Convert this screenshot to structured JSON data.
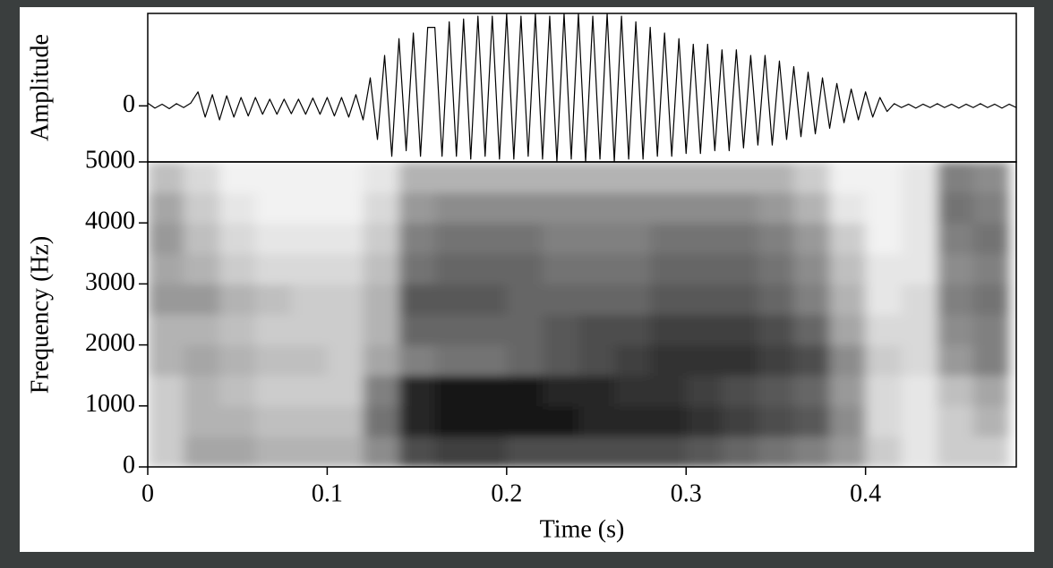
{
  "chart_data": [
    {
      "type": "line",
      "ylabel": "Amplitude",
      "color": "#000000",
      "xlim": [
        0,
        0.484
      ],
      "ylim": [
        -1,
        1.65
      ],
      "yticks": [
        0
      ],
      "x": [
        0,
        0.004,
        0.008,
        0.012,
        0.016,
        0.02,
        0.024,
        0.028,
        0.032,
        0.036,
        0.04,
        0.044,
        0.048,
        0.052,
        0.056,
        0.06,
        0.064,
        0.068,
        0.072,
        0.076,
        0.08,
        0.084,
        0.088,
        0.092,
        0.096,
        0.1,
        0.104,
        0.108,
        0.112,
        0.116,
        0.12,
        0.124,
        0.128,
        0.132,
        0.136,
        0.14,
        0.144,
        0.148,
        0.152,
        0.156,
        0.16,
        0.164,
        0.168,
        0.172,
        0.176,
        0.18,
        0.184,
        0.188,
        0.192,
        0.196,
        0.2,
        0.204,
        0.208,
        0.212,
        0.216,
        0.22,
        0.224,
        0.228,
        0.232,
        0.236,
        0.24,
        0.244,
        0.248,
        0.252,
        0.256,
        0.26,
        0.264,
        0.268,
        0.272,
        0.276,
        0.28,
        0.284,
        0.288,
        0.292,
        0.296,
        0.3,
        0.304,
        0.308,
        0.312,
        0.316,
        0.32,
        0.324,
        0.328,
        0.332,
        0.336,
        0.34,
        0.344,
        0.348,
        0.352,
        0.356,
        0.36,
        0.364,
        0.368,
        0.372,
        0.376,
        0.38,
        0.384,
        0.388,
        0.392,
        0.396,
        0.4,
        0.404,
        0.408,
        0.412,
        0.416,
        0.42,
        0.424,
        0.428,
        0.432,
        0.436,
        0.44,
        0.444,
        0.448,
        0.452,
        0.456,
        0.46,
        0.464,
        0.468,
        0.472,
        0.476,
        0.48,
        0.484
      ],
      "values": [
        0.05,
        -0.04,
        0.03,
        -0.05,
        0.04,
        -0.03,
        0.05,
        0.25,
        -0.2,
        0.2,
        -0.25,
        0.18,
        -0.2,
        0.15,
        -0.18,
        0.15,
        -0.15,
        0.12,
        -0.15,
        0.12,
        -0.14,
        0.12,
        -0.15,
        0.14,
        -0.15,
        0.15,
        -0.18,
        0.15,
        -0.2,
        0.2,
        -0.25,
        0.5,
        -0.6,
        0.9,
        -0.9,
        1.2,
        -0.8,
        1.3,
        -0.9,
        1.4,
        1.4,
        -0.9,
        1.5,
        -0.9,
        1.55,
        -0.95,
        1.6,
        -0.9,
        1.6,
        -0.95,
        1.65,
        -0.95,
        1.6,
        -0.9,
        1.65,
        -0.95,
        1.6,
        -1,
        1.65,
        -0.95,
        1.65,
        -1,
        1.6,
        -0.95,
        1.65,
        -1,
        1.6,
        -0.95,
        1.5,
        -0.95,
        1.4,
        -0.9,
        1.3,
        -0.9,
        1.2,
        -0.85,
        1.1,
        -0.85,
        1.1,
        -0.8,
        1.0,
        -0.8,
        1.0,
        -0.75,
        0.9,
        -0.7,
        0.9,
        -0.7,
        0.8,
        -0.6,
        0.7,
        -0.55,
        0.6,
        -0.5,
        0.5,
        -0.4,
        0.4,
        -0.3,
        0.3,
        -0.25,
        0.25,
        -0.2,
        0.15,
        -0.1,
        0.04,
        -0.03,
        0.03,
        -0.04,
        0.03,
        -0.03,
        0.04,
        -0.03,
        0.03,
        -0.04,
        0.03,
        -0.03,
        0.04,
        -0.03,
        0.03,
        -0.04,
        0.03,
        -0.03
      ]
    },
    {
      "type": "heatmap",
      "ylabel": "Frequency (Hz)",
      "xlabel": "Time (s)",
      "xlim": [
        0,
        0.484
      ],
      "ylim": [
        0,
        5000
      ],
      "xticks": [
        0,
        0.1,
        0.2,
        0.3,
        0.4
      ],
      "yticks": [
        0,
        1000,
        2000,
        3000,
        4000,
        5000
      ],
      "x": [
        0,
        0.02,
        0.04,
        0.06,
        0.08,
        0.1,
        0.12,
        0.14,
        0.16,
        0.18,
        0.2,
        0.22,
        0.24,
        0.26,
        0.28,
        0.3,
        0.32,
        0.34,
        0.36,
        0.38,
        0.4,
        0.42,
        0.44,
        0.46,
        0.48
      ],
      "y": [
        0,
        500,
        1000,
        1500,
        2000,
        2500,
        3000,
        3500,
        4000,
        4500,
        5000
      ],
      "z": [
        [
          0.2,
          0.35,
          0.35,
          0.3,
          0.3,
          0.3,
          0.45,
          0.7,
          0.75,
          0.75,
          0.7,
          0.7,
          0.7,
          0.7,
          0.7,
          0.65,
          0.6,
          0.55,
          0.5,
          0.4,
          0.2,
          0.1,
          0.2,
          0.2
        ],
        [
          0.2,
          0.3,
          0.3,
          0.25,
          0.25,
          0.25,
          0.55,
          0.85,
          0.9,
          0.9,
          0.9,
          0.9,
          0.85,
          0.85,
          0.85,
          0.8,
          0.75,
          0.7,
          0.65,
          0.45,
          0.15,
          0.1,
          0.2,
          0.3
        ],
        [
          0.2,
          0.3,
          0.25,
          0.2,
          0.2,
          0.2,
          0.5,
          0.85,
          0.9,
          0.9,
          0.9,
          0.85,
          0.85,
          0.8,
          0.8,
          0.75,
          0.7,
          0.65,
          0.6,
          0.4,
          0.15,
          0.1,
          0.25,
          0.35
        ],
        [
          0.3,
          0.35,
          0.3,
          0.25,
          0.25,
          0.2,
          0.35,
          0.5,
          0.55,
          0.55,
          0.6,
          0.65,
          0.7,
          0.75,
          0.8,
          0.8,
          0.8,
          0.75,
          0.7,
          0.45,
          0.2,
          0.15,
          0.4,
          0.5
        ],
        [
          0.3,
          0.3,
          0.25,
          0.2,
          0.2,
          0.2,
          0.3,
          0.6,
          0.6,
          0.6,
          0.6,
          0.65,
          0.7,
          0.7,
          0.75,
          0.75,
          0.75,
          0.7,
          0.6,
          0.35,
          0.15,
          0.15,
          0.45,
          0.5
        ],
        [
          0.4,
          0.4,
          0.3,
          0.25,
          0.2,
          0.2,
          0.3,
          0.65,
          0.65,
          0.65,
          0.6,
          0.6,
          0.6,
          0.6,
          0.65,
          0.65,
          0.65,
          0.6,
          0.5,
          0.3,
          0.1,
          0.15,
          0.5,
          0.55
        ],
        [
          0.35,
          0.3,
          0.2,
          0.15,
          0.15,
          0.15,
          0.25,
          0.55,
          0.6,
          0.6,
          0.6,
          0.55,
          0.55,
          0.55,
          0.6,
          0.6,
          0.6,
          0.55,
          0.45,
          0.25,
          0.1,
          0.1,
          0.45,
          0.5
        ],
        [
          0.4,
          0.25,
          0.15,
          0.1,
          0.1,
          0.1,
          0.2,
          0.5,
          0.55,
          0.55,
          0.55,
          0.5,
          0.5,
          0.5,
          0.55,
          0.55,
          0.55,
          0.5,
          0.4,
          0.2,
          0.05,
          0.1,
          0.5,
          0.55
        ],
        [
          0.35,
          0.2,
          0.1,
          0.05,
          0.05,
          0.05,
          0.15,
          0.4,
          0.45,
          0.45,
          0.45,
          0.45,
          0.45,
          0.45,
          0.45,
          0.45,
          0.45,
          0.4,
          0.3,
          0.1,
          0.05,
          0.1,
          0.55,
          0.5
        ],
        [
          0.25,
          0.15,
          0.05,
          0.05,
          0.05,
          0.05,
          0.1,
          0.3,
          0.3,
          0.3,
          0.3,
          0.3,
          0.3,
          0.3,
          0.3,
          0.3,
          0.3,
          0.3,
          0.2,
          0.05,
          0.05,
          0.1,
          0.5,
          0.45
        ]
      ]
    }
  ]
}
